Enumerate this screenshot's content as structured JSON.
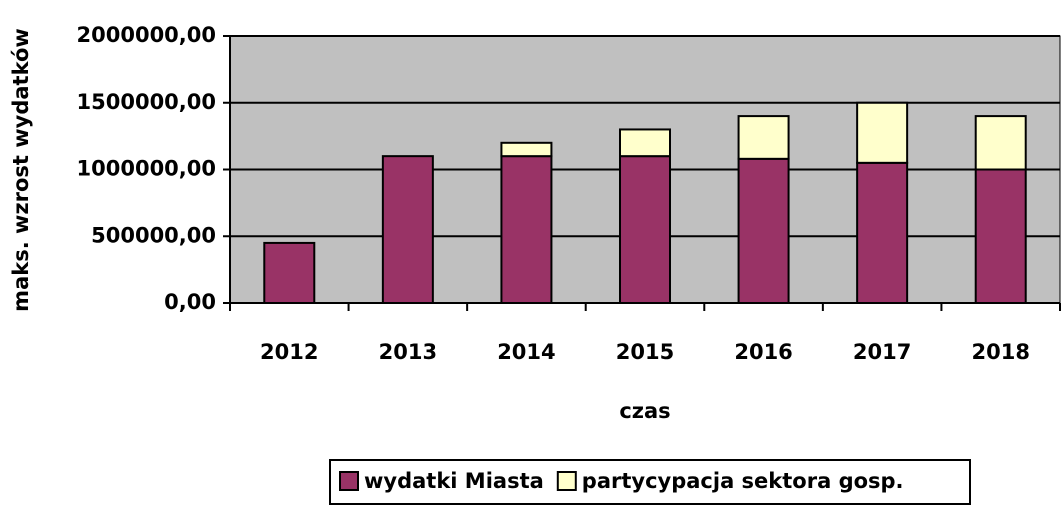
{
  "chart_data": {
    "type": "bar",
    "stacked": true,
    "x_label": "czas",
    "y_label": "maks. wzrost wydatków",
    "categories": [
      "2012",
      "2013",
      "2014",
      "2015",
      "2016",
      "2017",
      "2018"
    ],
    "series": [
      {
        "name": "wydatki Miasta",
        "color": "#993366",
        "values": [
          450000,
          1100000,
          1100000,
          1100000,
          1080000,
          1050000,
          1000000
        ]
      },
      {
        "name": "partycypacja sektora gosp.",
        "color": "#ffffcc",
        "values": [
          0,
          0,
          100000,
          200000,
          320000,
          450000,
          400000
        ]
      }
    ],
    "ylim": [
      0,
      2000000
    ],
    "yticks": [
      {
        "value": 0,
        "label": "0,00"
      },
      {
        "value": 500000,
        "label": "500000,00"
      },
      {
        "value": 1000000,
        "label": "1000000,00"
      },
      {
        "value": 1500000,
        "label": "1500000,00"
      },
      {
        "value": 2000000,
        "label": "2000000,00"
      }
    ],
    "grid": true,
    "plot_background": "#c0c0c0",
    "legend": "bottom"
  }
}
